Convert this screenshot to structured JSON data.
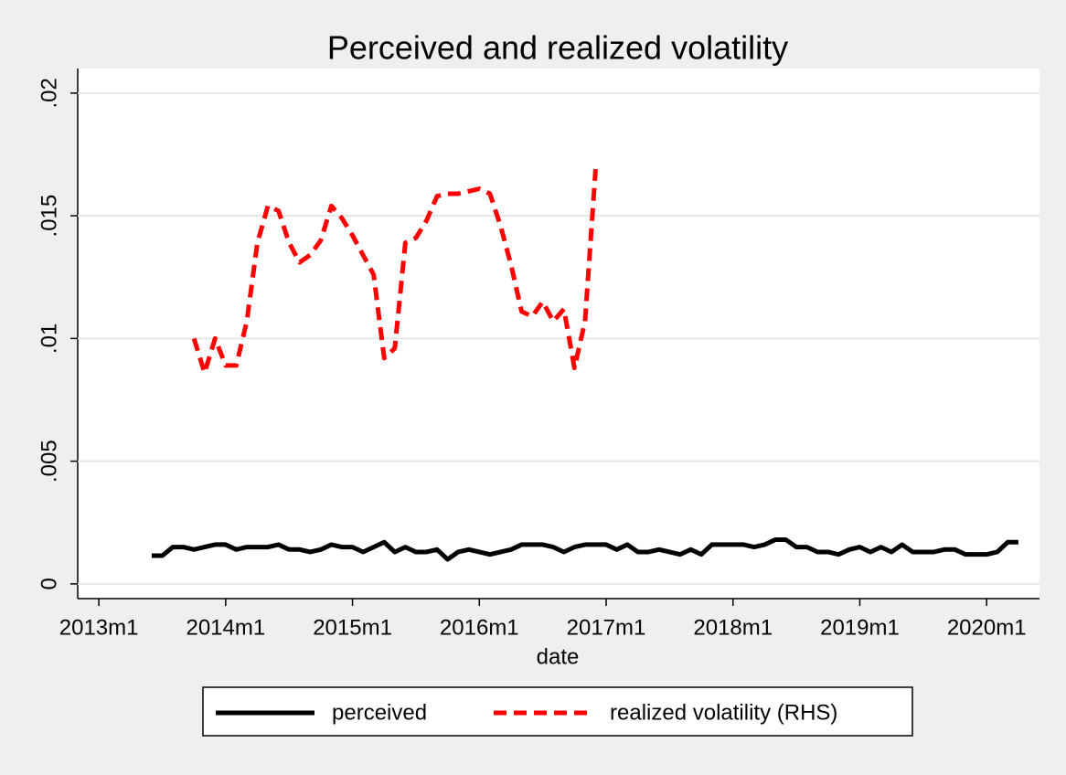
{
  "chart_data": {
    "type": "line",
    "title": "Perceived and realized volatility",
    "x_label": "date",
    "x": [
      "2013m6",
      "2013m7",
      "2013m8",
      "2013m9",
      "2013m10",
      "2013m11",
      "2013m12",
      "2014m1",
      "2014m2",
      "2014m3",
      "2014m4",
      "2014m5",
      "2014m6",
      "2014m7",
      "2014m8",
      "2014m9",
      "2014m10",
      "2014m11",
      "2014m12",
      "2015m1",
      "2015m2",
      "2015m3",
      "2015m4",
      "2015m5",
      "2015m6",
      "2015m7",
      "2015m8",
      "2015m9",
      "2015m10",
      "2015m11",
      "2015m12",
      "2016m1",
      "2016m2",
      "2016m3",
      "2016m4",
      "2016m5",
      "2016m6",
      "2016m7",
      "2016m8",
      "2016m9",
      "2016m10",
      "2016m11",
      "2016m12",
      "2017m1",
      "2017m2",
      "2017m3",
      "2017m4",
      "2017m5",
      "2017m6",
      "2017m7",
      "2017m8",
      "2017m9",
      "2017m10",
      "2017m11",
      "2017m12",
      "2018m1",
      "2018m2",
      "2018m3",
      "2018m4",
      "2018m5",
      "2018m6",
      "2018m7",
      "2018m8",
      "2018m9",
      "2018m10",
      "2018m11",
      "2018m12",
      "2019m1",
      "2019m2",
      "2019m3",
      "2019m4",
      "2019m5",
      "2019m6",
      "2019m7",
      "2019m8",
      "2019m9",
      "2019m10",
      "2019m11",
      "2019m12",
      "2020m1",
      "2020m2",
      "2020m3",
      "2020m4"
    ],
    "series": [
      {
        "name": "perceived",
        "color": "#000000",
        "dashed": false,
        "values": [
          0.00115,
          0.00115,
          0.0015,
          0.0015,
          0.0014,
          0.0015,
          0.0016,
          0.0016,
          0.0014,
          0.0015,
          0.0015,
          0.0015,
          0.0016,
          0.0014,
          0.0014,
          0.0013,
          0.0014,
          0.0016,
          0.0015,
          0.0015,
          0.0013,
          0.0015,
          0.0017,
          0.0013,
          0.0015,
          0.0013,
          0.0013,
          0.0014,
          0.001,
          0.0013,
          0.0014,
          0.0013,
          0.0012,
          0.0013,
          0.0014,
          0.0016,
          0.0016,
          0.0016,
          0.0015,
          0.0013,
          0.0015,
          0.0016,
          0.0016,
          0.0016,
          0.0014,
          0.0016,
          0.0013,
          0.0013,
          0.0014,
          0.0013,
          0.0012,
          0.0014,
          0.0012,
          0.0016,
          0.0016,
          0.0016,
          0.0016,
          0.0015,
          0.0016,
          0.0018,
          0.0018,
          0.0015,
          0.0015,
          0.0013,
          0.0013,
          0.0012,
          0.0014,
          0.0015,
          0.0013,
          0.0015,
          0.0013,
          0.0016,
          0.0013,
          0.0013,
          0.0013,
          0.0014,
          0.0014,
          0.0012,
          0.0012,
          0.0012,
          0.0013,
          0.0017,
          0.0017
        ]
      },
      {
        "name": "realized volatility (RHS)",
        "color": "#ff0000",
        "dashed": true,
        "values": [
          null,
          null,
          null,
          null,
          0.01,
          0.0086,
          0.01,
          0.0089,
          0.0089,
          0.0107,
          0.0139,
          0.0154,
          0.0152,
          0.0139,
          0.0131,
          0.0134,
          0.014,
          0.0154,
          0.0149,
          0.0142,
          0.0134,
          0.0126,
          0.0092,
          0.0096,
          0.0139,
          0.0141,
          0.0148,
          0.0158,
          0.0159,
          0.0159,
          0.016,
          0.0161,
          0.0159,
          0.0146,
          0.013,
          0.0111,
          0.0109,
          0.0115,
          0.0107,
          0.0112,
          0.0088,
          0.0107,
          0.0169,
          null,
          null,
          null,
          null,
          null,
          null,
          null,
          null,
          null,
          null,
          null,
          null,
          null,
          null,
          null,
          null,
          null,
          null,
          null,
          null,
          null,
          null,
          null,
          null,
          null,
          null,
          null,
          null,
          null,
          null,
          null,
          null,
          null,
          null,
          null,
          null,
          null,
          null,
          null,
          null
        ]
      }
    ],
    "xlim": [
      "2012m11",
      "2020m6"
    ],
    "xticks": [
      "2013m1",
      "2014m1",
      "2015m1",
      "2016m1",
      "2017m1",
      "2018m1",
      "2019m1",
      "2020m1"
    ],
    "ylim": [
      -0.0006,
      0.021
    ],
    "yticks": [
      {
        "value": 0,
        "label": "0"
      },
      {
        "value": 0.005,
        "label": ".005"
      },
      {
        "value": 0.01,
        "label": ".01"
      },
      {
        "value": 0.015,
        "label": ".015"
      },
      {
        "value": 0.02,
        "label": ".02"
      }
    ],
    "grid": true,
    "legend": "bottom"
  }
}
